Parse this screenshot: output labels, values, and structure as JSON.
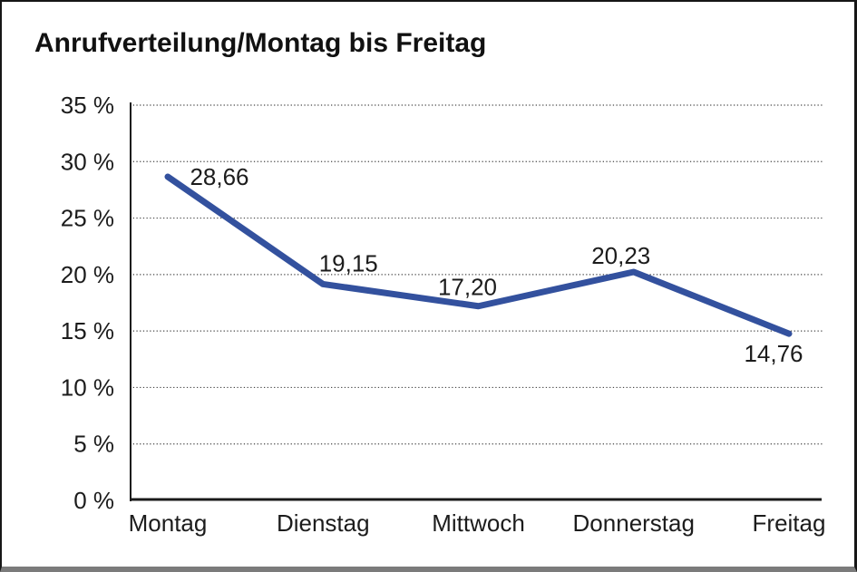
{
  "title": "Anrufverteilung/Montag bis Freitag",
  "colors": {
    "line": "#33519E",
    "grid": "#4a4a4a",
    "axis": "#1a1a1a",
    "text": "#1c1c1c",
    "background": "#ffffff",
    "frame": "#161616",
    "frame_bottom": "#7b7b7b"
  },
  "chart_data": {
    "type": "line",
    "title": "Anrufverteilung/Montag bis Freitag",
    "categories": [
      "Montag",
      "Dienstag",
      "Mittwoch",
      "Donnerstag",
      "Freitag"
    ],
    "values": [
      28.66,
      19.15,
      17.2,
      20.23,
      14.76
    ],
    "value_labels": [
      "28,66",
      "19,15",
      "17,20",
      "20,23",
      "14,76"
    ],
    "xlabel": "",
    "ylabel": "",
    "ylim": [
      0,
      35
    ],
    "ytick_step": 5,
    "ytick_labels": [
      "0 %",
      "5 %",
      "10 %",
      "15 %",
      "20 %",
      "25 %",
      "30 %",
      "35 %"
    ],
    "grid": "horizontal-dotted",
    "legend": "none",
    "decimal_separator": ","
  }
}
